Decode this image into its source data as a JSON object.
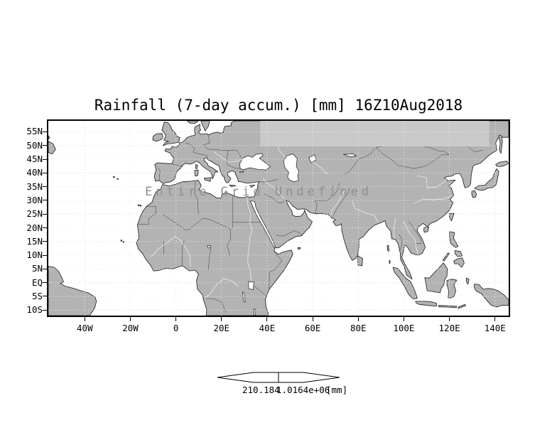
{
  "title": "Rainfall (7-day accum.) [mm] 16Z10Aug2018",
  "center_note": "Entire Grid Undefined",
  "axes": {
    "lat_ticks": [
      {
        "label": "55N",
        "deg": 55
      },
      {
        "label": "50N",
        "deg": 50
      },
      {
        "label": "45N",
        "deg": 45
      },
      {
        "label": "40N",
        "deg": 40
      },
      {
        "label": "35N",
        "deg": 35
      },
      {
        "label": "30N",
        "deg": 30
      },
      {
        "label": "25N",
        "deg": 25
      },
      {
        "label": "20N",
        "deg": 20
      },
      {
        "label": "15N",
        "deg": 15
      },
      {
        "label": "10N",
        "deg": 10
      },
      {
        "label": "5N",
        "deg": 5
      },
      {
        "label": "EQ",
        "deg": 0
      },
      {
        "label": "5S",
        "deg": -5
      },
      {
        "label": "10S",
        "deg": -10
      }
    ],
    "lon_ticks": [
      {
        "label": "40W",
        "deg": -40
      },
      {
        "label": "20W",
        "deg": -20
      },
      {
        "label": "0",
        "deg": 0
      },
      {
        "label": "20E",
        "deg": 20
      },
      {
        "label": "40E",
        "deg": 40
      },
      {
        "label": "60E",
        "deg": 60
      },
      {
        "label": "80E",
        "deg": 80
      },
      {
        "label": "100E",
        "deg": 100
      },
      {
        "label": "120E",
        "deg": 120
      },
      {
        "label": "140E",
        "deg": 140
      }
    ]
  },
  "colorbar": {
    "left_label": "210.184",
    "right_label": "1.0164e+06",
    "unit_label": "[mm]"
  },
  "colors": {
    "land": "#b3b3b3",
    "ocean": "#ffffff",
    "shaded_band": "#c9c9c9",
    "coastline": "#1a1a1a",
    "note_gray": "#8f8f8f"
  },
  "chart_data": {
    "type": "heatmap",
    "title": "Rainfall (7-day accum.) [mm] 16Z10Aug2018",
    "variable": "Rainfall (7-day accumulation)",
    "units": "mm",
    "valid_time": "16Z10Aug2018",
    "projection": "latlon",
    "lon_range_deg": [
      -56,
      146
    ],
    "lat_range_deg": [
      -12,
      59
    ],
    "lat_ticks": [
      "55N",
      "50N",
      "45N",
      "40N",
      "35N",
      "30N",
      "25N",
      "20N",
      "15N",
      "10N",
      "5N",
      "EQ",
      "5S",
      "10S"
    ],
    "lon_ticks": [
      "40W",
      "20W",
      "0",
      "20E",
      "40E",
      "60E",
      "80E",
      "100E",
      "120E",
      "140E"
    ],
    "grid": "dotted",
    "series": [],
    "status": "Entire Grid Undefined",
    "colorbar": {
      "min_label": "210.184",
      "max_label": "1.0164e+06",
      "units_label": "[mm]"
    }
  }
}
